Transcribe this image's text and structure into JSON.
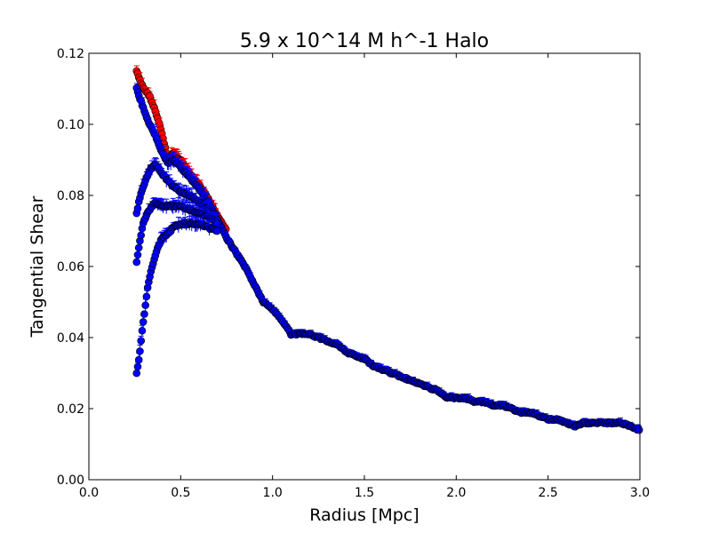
{
  "chart_data": {
    "type": "scatter",
    "title": "5.9 x 10^14 M h^-1 Halo",
    "xlabel": "Radius [Mpc]",
    "ylabel": "Tangential Shear",
    "xlim": [
      0.0,
      3.0
    ],
    "ylim": [
      0.0,
      0.12
    ],
    "x_ticks": [
      "0.0",
      "0.5",
      "1.0",
      "1.5",
      "2.0",
      "2.5",
      "3.0"
    ],
    "y_ticks": [
      "0.00",
      "0.02",
      "0.04",
      "0.06",
      "0.08",
      "0.10",
      "0.12"
    ],
    "grid": false,
    "legend": "none",
    "series": [
      {
        "color": "#ff0000",
        "marker": "circle",
        "error_bars": true,
        "x": [
          0.26,
          0.28,
          0.3,
          0.33,
          0.36,
          0.4,
          0.43,
          0.46,
          0.5,
          0.55,
          0.6,
          0.65,
          0.7,
          0.75
        ],
        "y": [
          0.115,
          0.112,
          0.11,
          0.108,
          0.104,
          0.097,
          0.09,
          0.092,
          0.09,
          0.086,
          0.083,
          0.079,
          0.074,
          0.07
        ]
      },
      {
        "color": "#0000ff",
        "marker": "circle",
        "error_bars": true,
        "x": [
          0.26,
          0.28,
          0.3,
          0.33,
          0.36,
          0.4,
          0.43,
          0.46,
          0.5,
          0.55,
          0.6,
          0.65,
          0.7,
          0.75,
          0.8,
          0.85,
          0.9,
          0.95,
          1.0,
          1.05,
          1.1,
          1.15,
          1.2,
          1.25,
          1.3,
          1.35,
          1.4,
          1.45,
          1.5,
          1.55,
          1.6,
          1.65,
          1.7,
          1.75,
          1.8,
          1.85,
          1.9,
          1.95,
          2.0,
          2.05,
          2.1,
          2.15,
          2.2,
          2.25,
          2.3,
          2.35,
          2.4,
          2.45,
          2.5,
          2.55,
          2.6,
          2.65,
          2.7,
          2.75,
          2.8,
          2.85,
          2.9,
          2.95,
          3.0
        ],
        "y": [
          0.11,
          0.107,
          0.104,
          0.1,
          0.097,
          0.092,
          0.089,
          0.09,
          0.088,
          0.085,
          0.082,
          0.078,
          0.073,
          0.068,
          0.064,
          0.06,
          0.055,
          0.05,
          0.048,
          0.045,
          0.041,
          0.041,
          0.041,
          0.04,
          0.039,
          0.038,
          0.036,
          0.035,
          0.034,
          0.032,
          0.031,
          0.03,
          0.029,
          0.028,
          0.027,
          0.026,
          0.025,
          0.023,
          0.023,
          0.023,
          0.022,
          0.022,
          0.021,
          0.021,
          0.02,
          0.019,
          0.019,
          0.018,
          0.017,
          0.017,
          0.016,
          0.015,
          0.016,
          0.016,
          0.016,
          0.016,
          0.016,
          0.015,
          0.014
        ]
      },
      {
        "color": "#0000ff",
        "marker": "circle",
        "error_bars": true,
        "x": [
          0.26,
          0.28,
          0.3,
          0.33,
          0.36,
          0.4,
          0.45,
          0.5,
          0.55,
          0.6,
          0.65,
          0.7
        ],
        "y": [
          0.075,
          0.08,
          0.083,
          0.087,
          0.089,
          0.086,
          0.083,
          0.081,
          0.08,
          0.078,
          0.076,
          0.073
        ]
      },
      {
        "color": "#0000ff",
        "marker": "circle",
        "error_bars": true,
        "x": [
          0.26,
          0.28,
          0.3,
          0.33,
          0.36,
          0.4,
          0.45,
          0.5,
          0.55,
          0.6,
          0.65,
          0.7
        ],
        "y": [
          0.061,
          0.068,
          0.073,
          0.076,
          0.078,
          0.077,
          0.077,
          0.077,
          0.076,
          0.075,
          0.074,
          0.072
        ]
      },
      {
        "color": "#0000ff",
        "marker": "circle",
        "error_bars": true,
        "x": [
          0.26,
          0.27,
          0.28,
          0.29,
          0.3,
          0.31,
          0.32,
          0.34,
          0.36,
          0.38,
          0.4,
          0.43,
          0.46,
          0.5,
          0.55,
          0.6,
          0.65,
          0.7
        ],
        "y": [
          0.03,
          0.033,
          0.037,
          0.042,
          0.046,
          0.05,
          0.054,
          0.059,
          0.063,
          0.066,
          0.068,
          0.069,
          0.071,
          0.072,
          0.072,
          0.072,
          0.071,
          0.07
        ]
      }
    ]
  }
}
